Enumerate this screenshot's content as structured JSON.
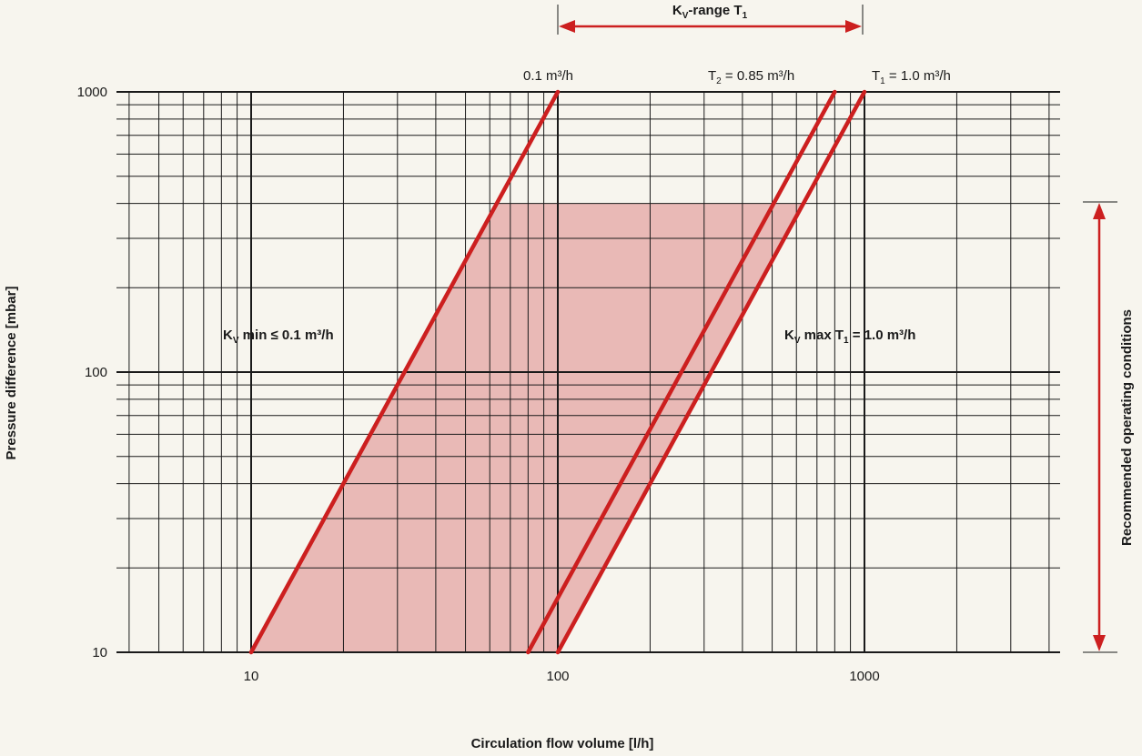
{
  "chart_data": {
    "type": "line",
    "title": "",
    "xlabel": "Circulation flow volume [l/h]",
    "ylabel": "Pressure difference [mbar]",
    "x_scale": "log",
    "y_scale": "log",
    "xlim": [
      4,
      4800
    ],
    "ylim": [
      10,
      1000
    ],
    "x_ticks": [
      10,
      100,
      1000
    ],
    "x_tick_labels": [
      "10",
      "100",
      "1000"
    ],
    "y_ticks": [
      10,
      100,
      1000
    ],
    "y_tick_labels": [
      "10",
      "100",
      "1000"
    ],
    "grid": true,
    "series": [
      {
        "name": "0.1 m³/h",
        "x": [
          10,
          100
        ],
        "y": [
          10,
          1000
        ]
      },
      {
        "name": "T₂ = 0.85 m³/h",
        "x": [
          80,
          800
        ],
        "y": [
          10,
          1000
        ]
      },
      {
        "name": "T₁ = 1.0 m³/h",
        "x": [
          100,
          1000
        ],
        "y": [
          10,
          1000
        ]
      }
    ],
    "recommended_region": {
      "x_corners": [
        10,
        100,
        500,
        1000
      ],
      "y_min": 10,
      "y_max": 400,
      "color": "#e9b9b6"
    },
    "line_color": "#cc1f1f",
    "annotations": {
      "kv_range": {
        "main": "K",
        "sub": "V",
        "rest": "-range T",
        "rest_sub": "1",
        "x_from": 100,
        "x_to": 1000
      },
      "line_label_a": "0.1 m³/h",
      "line_label_b": {
        "prefix": "T",
        "sub": "2",
        "rest": " = 0.85 m³/h"
      },
      "line_label_c": {
        "prefix": "T",
        "sub": "1",
        "rest": " = 1.0 m³/h"
      },
      "kv_min": {
        "prefix": "K",
        "sub": "V",
        "rest": " min ≤ 0.1 m³/h"
      },
      "kv_max": {
        "prefix": "K",
        "sub": "V",
        "mid": " max T",
        "sub2": "1",
        "rest": " = 1.0 m³/h"
      },
      "recommended": {
        "text": "Recommended operating conditions",
        "y_from": 10,
        "y_to": 400
      }
    }
  }
}
